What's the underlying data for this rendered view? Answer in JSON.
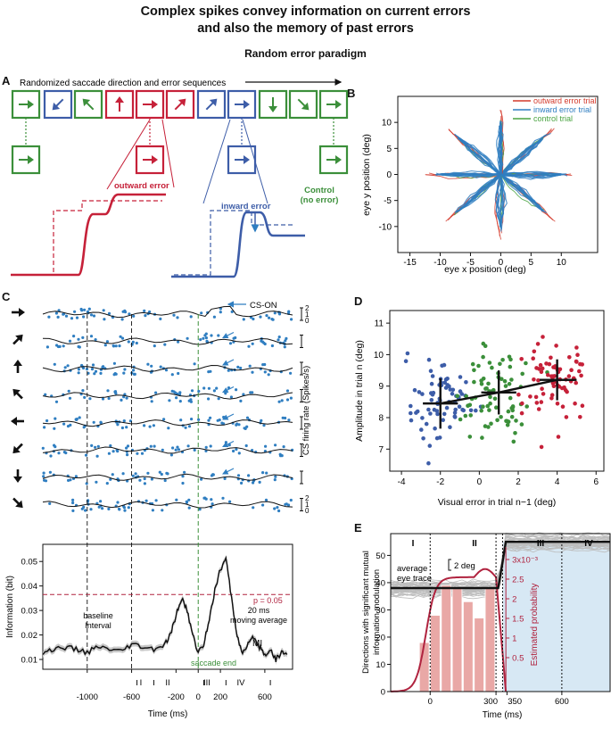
{
  "title": {
    "line1": "Complex spikes convey information on current errors",
    "line2": "and also the memory of past errors"
  },
  "subtitle": "Random error paradigm",
  "panelA": {
    "label": "A",
    "sequence_label": "Randomized saccade direction and error sequences",
    "outward_label": "outward error",
    "inward_label": "inward error",
    "control_label_1": "Control",
    "control_label_2": "(no error)",
    "colors": {
      "outward": "#c62139",
      "inward": "#3d5da8",
      "control": "#3b8f3a"
    },
    "boxes": [
      {
        "type": "control",
        "arrow": "right"
      },
      {
        "type": "inward",
        "arrow": "down-left"
      },
      {
        "type": "control",
        "arrow": "up-left"
      },
      {
        "type": "outward",
        "arrow": "up"
      },
      {
        "type": "outward",
        "arrow": "right"
      },
      {
        "type": "outward",
        "arrow": "up-right"
      },
      {
        "type": "inward",
        "arrow": "up-right"
      },
      {
        "type": "inward",
        "arrow": "right"
      },
      {
        "type": "control",
        "arrow": "down"
      },
      {
        "type": "control",
        "arrow": "down-right"
      },
      {
        "type": "control",
        "arrow": "right"
      }
    ]
  },
  "panelB": {
    "label": "B",
    "xlabel": "eye x position (deg)",
    "ylabel": "eye y position (deg)",
    "xticks": [
      "-15",
      "-10",
      "-5",
      "0",
      "5",
      "10"
    ],
    "yticks": [
      "10",
      "5",
      "0",
      "-5",
      "-10"
    ],
    "legend": [
      {
        "label": "outward error trial",
        "color": "#d33a2c"
      },
      {
        "label": "inward error trial",
        "color": "#2f7ec1"
      },
      {
        "label": "control trial",
        "color": "#4aa341"
      }
    ]
  },
  "panelC": {
    "label": "C",
    "cs_on": "CS-ON",
    "firing_rate_label": "CS firing rate (Spikes/s)",
    "scale_ticks": [
      "2",
      "1",
      "0"
    ],
    "ylabel": "Information (bit)",
    "xlabel": "Time (ms)",
    "yticks": [
      "0.05",
      "0.04",
      "0.03",
      "0.02",
      "0.01"
    ],
    "xticks": [
      "-1000",
      "-600",
      "-200",
      "0",
      "200",
      "600"
    ],
    "pvalue": "p = 0.05",
    "baseline_1": "baseline",
    "baseline_2": "Interval",
    "moving_1": "20 ms",
    "moving_2": "moving average",
    "mi": "MI",
    "saccade_end": "saccade end",
    "epochs": [
      "I",
      "II",
      "III",
      "IV"
    ],
    "row_arrows": [
      "right",
      "up-right",
      "up",
      "up-left",
      "left",
      "down-left",
      "down",
      "down-right"
    ],
    "chart_data": {
      "type": "line",
      "title": "",
      "xlabel": "Time (ms)",
      "ylabel": "Information (bit)",
      "xlim": [
        -1400,
        850
      ],
      "ylim": [
        0.006,
        0.057
      ],
      "threshold": 0.0365,
      "series": [
        {
          "name": "MI",
          "x": [
            -1400,
            -1300,
            -1200,
            -1100,
            -1000,
            -900,
            -800,
            -700,
            -600,
            -500,
            -400,
            -300,
            -250,
            -200,
            -150,
            -100,
            -50,
            0,
            50,
            100,
            150,
            200,
            250,
            300,
            350,
            400,
            450,
            500,
            550,
            600,
            650,
            700,
            750,
            800
          ],
          "y": [
            0.013,
            0.014,
            0.015,
            0.014,
            0.013,
            0.015,
            0.014,
            0.013,
            0.016,
            0.015,
            0.014,
            0.016,
            0.02,
            0.028,
            0.035,
            0.03,
            0.02,
            0.013,
            0.016,
            0.027,
            0.038,
            0.047,
            0.051,
            0.035,
            0.02,
            0.012,
            0.016,
            0.019,
            0.015,
            0.012,
            0.014,
            0.01,
            0.013,
            0.012
          ]
        }
      ]
    }
  },
  "panelD": {
    "label": "D",
    "xlabel": "Visual error in trial n−1 (deg)",
    "ylabel": "Amplitude in trial n (deg)",
    "xticks": [
      "-4",
      "-2",
      "0",
      "2",
      "4",
      "6"
    ],
    "yticks": [
      "11",
      "10",
      "9",
      "8",
      "7"
    ],
    "chart_data": {
      "type": "scatter",
      "xlabel": "Visual error in trial n−1 (deg)",
      "ylabel": "Amplitude in trial n (deg)",
      "xlim": [
        -4.6,
        6.4
      ],
      "ylim": [
        6.3,
        11.4
      ],
      "series": [
        {
          "name": "inward",
          "color": "#3d5da8",
          "center_x": -2.0,
          "mean": 8.45,
          "sd": 0.8
        },
        {
          "name": "control",
          "color": "#3b8f3a",
          "center_x": 1.0,
          "mean": 8.8,
          "sd": 0.7
        },
        {
          "name": "outward",
          "color": "#c62139",
          "center_x": 4.0,
          "mean": 9.2,
          "sd": 0.65
        }
      ],
      "trend": {
        "x": [
          -2,
          1,
          4
        ],
        "y": [
          8.45,
          8.8,
          9.2
        ]
      }
    }
  },
  "panelE": {
    "label": "E",
    "epochs": [
      "I",
      "II",
      "III",
      "IV"
    ],
    "avg_1": "average",
    "avg_2": "eye trace",
    "scale": "2 deg",
    "ylabel_1": "Directions with significant mutual",
    "ylabel_2": "information modulation",
    "xlabel": "Time (ms)",
    "yticks": [
      "50",
      "40",
      "30",
      "20",
      "10",
      "0"
    ],
    "xticks": [
      "0",
      "300",
      "350",
      "600"
    ],
    "right_label": "Estimated probability",
    "right_ticks": [
      "3x10⁻³",
      "2.5",
      "2",
      "1.5",
      "1",
      "0.5"
    ],
    "chart_data": {
      "type": "bar",
      "categories": [
        "-25",
        "25",
        "75",
        "125",
        "175",
        "225",
        "275"
      ],
      "values": [
        18,
        28,
        39,
        38,
        33,
        27,
        38
      ],
      "ylim": [
        0,
        58
      ],
      "xlim": [
        -180,
        820
      ],
      "density_ylim": [
        0,
        0.0033
      ]
    }
  }
}
